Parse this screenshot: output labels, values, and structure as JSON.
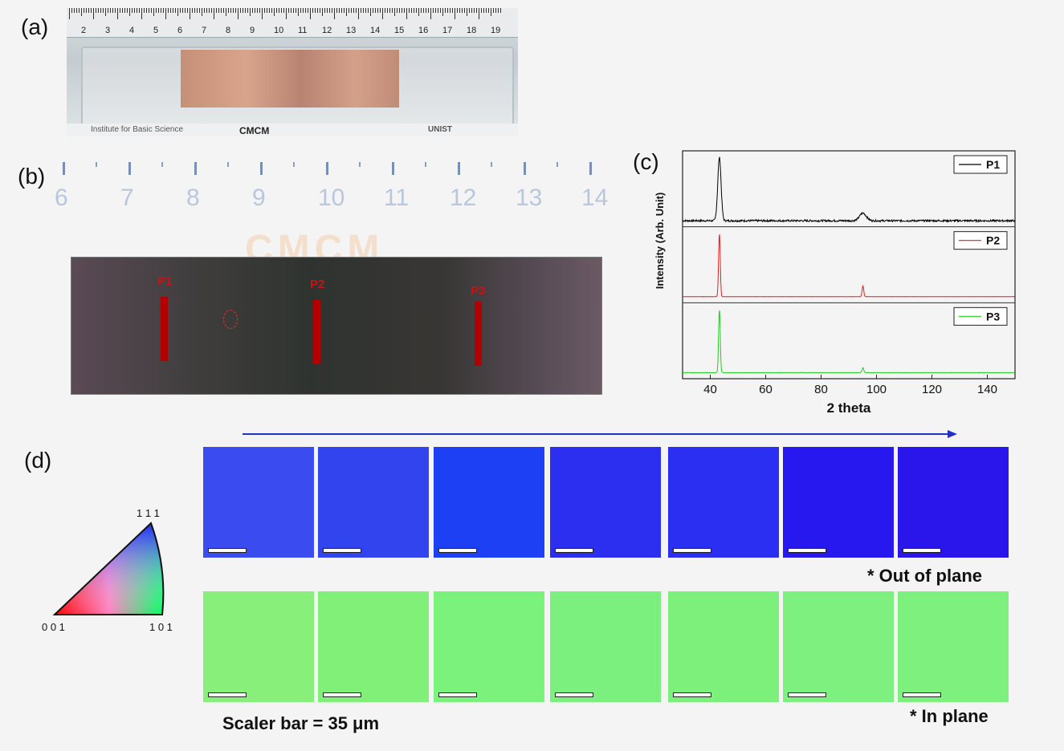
{
  "panels": {
    "a": {
      "label": "(a)",
      "ruler_numbers": [
        "2",
        "3",
        "4",
        "5",
        "6",
        "7",
        "8",
        "9",
        "10",
        "11",
        "12",
        "13",
        "14",
        "15",
        "16",
        "17",
        "18",
        "19"
      ],
      "footer_text": [
        "Institute for Basic Science",
        "CMCM",
        "UNIST"
      ]
    },
    "b": {
      "label": "(b)",
      "ruler_numbers": [
        "6",
        "7",
        "8",
        "9",
        "10",
        "11",
        "12",
        "13",
        "14"
      ],
      "watermark": "CMCM",
      "probes": [
        "P1",
        "P2",
        "P3"
      ]
    },
    "c": {
      "label": "(c)"
    },
    "d": {
      "label": "(d)",
      "triangle_labels": {
        "top": "1 1 1",
        "left": "0 0 1",
        "right": "1 0 1"
      },
      "out_of_plane_caption": "* Out of plane",
      "in_plane_caption": "* In plane",
      "scale_caption": "Scaler bar = 35 μm",
      "out_of_plane_colors": [
        "#3a4cf0",
        "#3244ee",
        "#1e40f5",
        "#2c2ef0",
        "#2a2ff2",
        "#2818f0",
        "#2a16ea"
      ],
      "in_plane_colors": [
        "#88f07a",
        "#80f078",
        "#7af27c",
        "#7cf07e",
        "#7df07c",
        "#7ef080",
        "#7ef07e"
      ]
    }
  },
  "chart_data": {
    "type": "line",
    "xlabel": "2 theta",
    "ylabel": "Intensity (Arb. Unit)",
    "xlim": [
      30,
      150
    ],
    "xticks": [
      40,
      60,
      80,
      100,
      120,
      140
    ],
    "series": [
      {
        "name": "P1",
        "color": "#000000",
        "peaks": [
          {
            "x": 43.3,
            "height": 1.0,
            "width": 0.6
          },
          {
            "x": 95.1,
            "height": 0.12,
            "width": 1.2
          }
        ],
        "baseline": 0.02,
        "noise": 0.03
      },
      {
        "name": "P2",
        "color": "#e02020",
        "peaks": [
          {
            "x": 43.3,
            "height": 1.0,
            "width": 0.3
          },
          {
            "x": 95.1,
            "height": 0.17,
            "width": 0.3
          }
        ],
        "baseline": 0.02,
        "noise": 0.003
      },
      {
        "name": "P3",
        "color": "#20d020",
        "peaks": [
          {
            "x": 43.3,
            "height": 1.0,
            "width": 0.3
          },
          {
            "x": 95.1,
            "height": 0.08,
            "width": 0.3
          }
        ],
        "baseline": 0.02,
        "noise": 0.003
      }
    ]
  }
}
